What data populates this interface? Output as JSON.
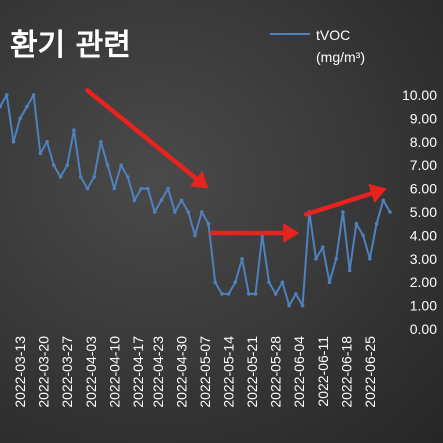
{
  "chart_data": {
    "type": "line",
    "title": "환기 관련",
    "series": [
      {
        "name": "tVOC",
        "unit": "(mg/m³)",
        "color": "#4f81bd",
        "x": [
          "2022-03-07",
          "2022-03-09",
          "2022-03-11",
          "2022-03-13",
          "2022-03-15",
          "2022-03-17",
          "2022-03-19",
          "2022-03-21",
          "2022-03-23",
          "2022-03-25",
          "2022-03-27",
          "2022-03-29",
          "2022-03-31",
          "2022-04-02",
          "2022-04-04",
          "2022-04-06",
          "2022-04-08",
          "2022-04-10",
          "2022-04-12",
          "2022-04-14",
          "2022-04-16",
          "2022-04-18",
          "2022-04-20",
          "2022-04-22",
          "2022-04-24",
          "2022-04-26",
          "2022-04-28",
          "2022-04-30",
          "2022-05-02",
          "2022-05-04",
          "2022-05-06",
          "2022-05-08",
          "2022-05-10",
          "2022-05-12",
          "2022-05-14",
          "2022-05-16",
          "2022-05-18",
          "2022-05-20",
          "2022-05-22",
          "2022-05-24",
          "2022-05-26",
          "2022-05-28",
          "2022-05-30",
          "2022-06-01",
          "2022-06-03",
          "2022-06-05",
          "2022-06-07",
          "2022-06-09",
          "2022-06-11",
          "2022-06-13",
          "2022-06-15",
          "2022-06-17",
          "2022-06-19",
          "2022-06-21",
          "2022-06-23",
          "2022-06-25",
          "2022-06-27",
          "2022-06-29",
          "2022-07-01"
        ],
        "values": [
          9.5,
          10.0,
          8.0,
          9.0,
          9.5,
          10.0,
          7.5,
          8.0,
          7.0,
          6.5,
          7.0,
          8.5,
          6.5,
          6.0,
          6.5,
          8.0,
          7.0,
          6.0,
          7.0,
          6.5,
          5.5,
          6.0,
          6.0,
          5.0,
          5.5,
          6.0,
          5.0,
          5.5,
          5.0,
          4.0,
          5.0,
          4.5,
          2.0,
          1.5,
          1.5,
          2.0,
          3.0,
          1.5,
          1.5,
          4.0,
          2.0,
          1.5,
          2.0,
          1.0,
          1.5,
          1.0,
          5.0,
          3.0,
          3.5,
          2.0,
          3.0,
          5.0,
          2.5,
          4.5,
          4.0,
          3.0,
          4.5,
          5.5,
          5.0
        ]
      }
    ],
    "y_ticks": [
      "10.00",
      "9.00",
      "8.00",
      "7.00",
      "6.00",
      "5.00",
      "4.00",
      "3.00",
      "2.00",
      "1.00",
      "0.00"
    ],
    "ylim": [
      0,
      10
    ],
    "x_ticks": [
      "2022-03-13",
      "2022-03-20",
      "2022-03-27",
      "2022-04-03",
      "2022-04-10",
      "2022-04-17",
      "2022-04-23",
      "2022-04-30",
      "2022-05-07",
      "2022-05-14",
      "2022-05-21",
      "2022-05-28",
      "2022-06-04",
      "2022-06-11",
      "2022-06-18",
      "2022-06-25"
    ],
    "xlim": [
      "2022-03-07",
      "2022-07-01"
    ],
    "legend": "top-right",
    "annotations": {
      "arrow_color": "#e8231f",
      "arrows": [
        {
          "from": [
            "2022-04-02",
            10.2
          ],
          "to": [
            "2022-05-08",
            6.0
          ]
        },
        {
          "from": [
            "2022-05-09",
            4.1
          ],
          "to": [
            "2022-06-04",
            4.1
          ]
        },
        {
          "from": [
            "2022-06-06",
            4.9
          ],
          "to": [
            "2022-06-30",
            6.0
          ]
        }
      ]
    }
  }
}
